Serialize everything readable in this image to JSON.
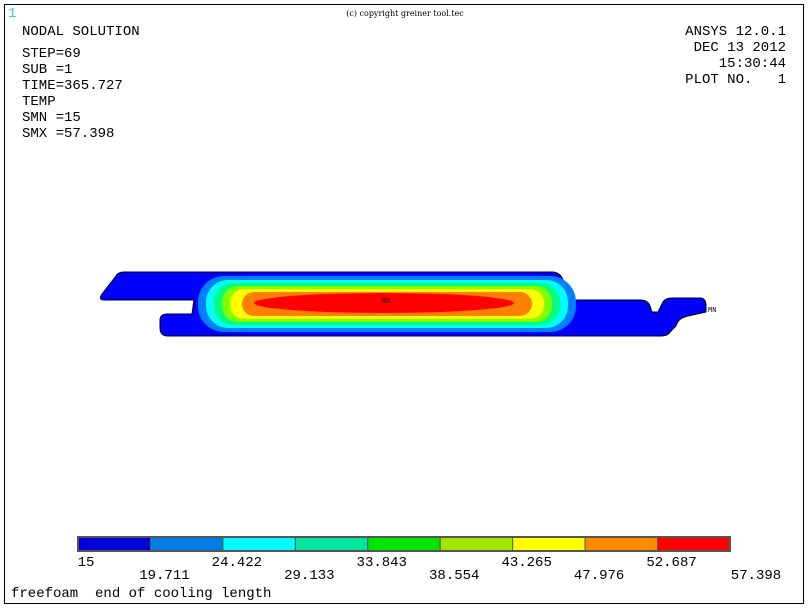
{
  "window_number": "1",
  "copyright": "(c) copyright greiner tool.tec",
  "info": {
    "title": "NODAL SOLUTION",
    "step": "STEP=69",
    "sub": "SUB =1",
    "time": "TIME=365.727",
    "quantity": "TEMP",
    "smn": "SMN =15",
    "smx": "SMX =57.398"
  },
  "header_right": {
    "version": "ANSYS 12.0.1",
    "date": "DEC 13 2012",
    "time": "15:30:44",
    "plot_no": "PLOT NO.   1"
  },
  "markers": {
    "max": "MX",
    "min": "MN"
  },
  "caption": "freefoam  end of cooling length",
  "legend": {
    "colors": [
      "#0000d6",
      "#0080e6",
      "#00ffff",
      "#00e6a0",
      "#00e600",
      "#a0e600",
      "#ffff00",
      "#ff8c00",
      "#ff0000"
    ],
    "labels": [
      "15",
      "19.711",
      "24.422",
      "29.133",
      "33.843",
      "38.554",
      "43.265",
      "47.976",
      "52.687",
      "57.398"
    ]
  },
  "colors": {
    "contour_bands": [
      "#0000ff",
      "#0080ff",
      "#00ffff",
      "#00ff80",
      "#80ff00",
      "#ffff00",
      "#ff8000",
      "#ff0000"
    ]
  }
}
